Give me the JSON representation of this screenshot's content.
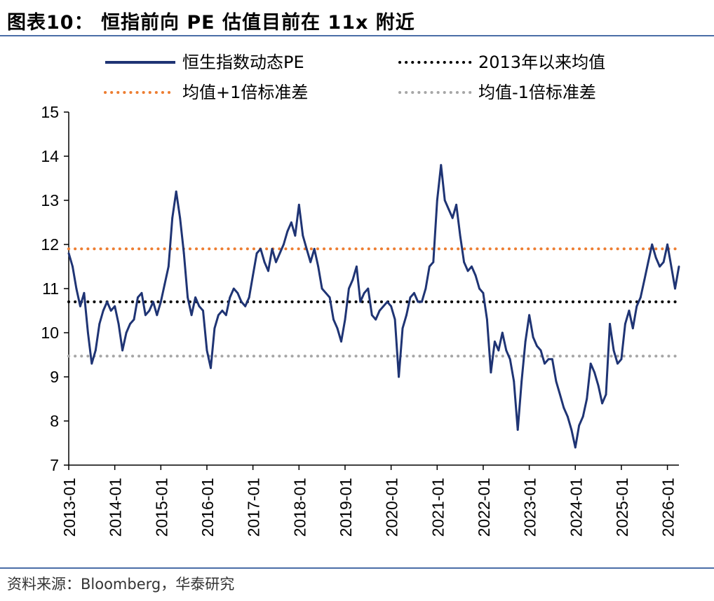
{
  "header": {
    "title": "图表10： 恒指前向 PE 估值目前在 11x 附近"
  },
  "footer": {
    "source": "资料来源：Bloomberg，华泰研究"
  },
  "colors": {
    "pe_line": "#1f3474",
    "mean": "#000000",
    "plus_sd": "#ed7d31",
    "minus_sd": "#a6a6a6",
    "rule": "#4a6da7"
  },
  "chart_data": {
    "type": "line",
    "title": "图表10： 恒指前向 PE 估值目前在 11x 附近",
    "xlabel": "",
    "ylabel": "",
    "ylim": [
      7,
      15
    ],
    "yticks": [
      7,
      8,
      9,
      10,
      11,
      12,
      13,
      14,
      15
    ],
    "xlim": [
      "2013-01",
      "2026-04"
    ],
    "xticks": [
      "2013-01",
      "2014-01",
      "2015-01",
      "2016-01",
      "2017-01",
      "2018-01",
      "2019-01",
      "2020-01",
      "2021-01",
      "2022-01",
      "2023-01",
      "2024-01",
      "2025-01",
      "2026-01"
    ],
    "grid": false,
    "legend_position": "top",
    "series": [
      {
        "name": "恒生指数动态PE",
        "style": "solid",
        "points": [
          [
            "2013-01",
            11.8
          ],
          [
            "2013-02",
            11.5
          ],
          [
            "2013-03",
            11.0
          ],
          [
            "2013-04",
            10.6
          ],
          [
            "2013-05",
            10.9
          ],
          [
            "2013-06",
            10.0
          ],
          [
            "2013-07",
            9.3
          ],
          [
            "2013-08",
            9.6
          ],
          [
            "2013-09",
            10.2
          ],
          [
            "2013-10",
            10.5
          ],
          [
            "2013-11",
            10.7
          ],
          [
            "2013-12",
            10.5
          ],
          [
            "2014-01",
            10.6
          ],
          [
            "2014-02",
            10.2
          ],
          [
            "2014-03",
            9.6
          ],
          [
            "2014-04",
            10.0
          ],
          [
            "2014-05",
            10.2
          ],
          [
            "2014-06",
            10.3
          ],
          [
            "2014-07",
            10.8
          ],
          [
            "2014-08",
            10.9
          ],
          [
            "2014-09",
            10.4
          ],
          [
            "2014-10",
            10.5
          ],
          [
            "2014-11",
            10.7
          ],
          [
            "2014-12",
            10.4
          ],
          [
            "2015-01",
            10.7
          ],
          [
            "2015-02",
            11.1
          ],
          [
            "2015-03",
            11.5
          ],
          [
            "2015-04",
            12.6
          ],
          [
            "2015-05",
            13.2
          ],
          [
            "2015-06",
            12.6
          ],
          [
            "2015-07",
            11.8
          ],
          [
            "2015-08",
            10.8
          ],
          [
            "2015-09",
            10.4
          ],
          [
            "2015-10",
            10.8
          ],
          [
            "2015-11",
            10.6
          ],
          [
            "2015-12",
            10.5
          ],
          [
            "2016-01",
            9.6
          ],
          [
            "2016-02",
            9.2
          ],
          [
            "2016-03",
            10.1
          ],
          [
            "2016-04",
            10.4
          ],
          [
            "2016-05",
            10.5
          ],
          [
            "2016-06",
            10.4
          ],
          [
            "2016-07",
            10.8
          ],
          [
            "2016-08",
            11.0
          ],
          [
            "2016-09",
            10.9
          ],
          [
            "2016-10",
            10.7
          ],
          [
            "2016-11",
            10.6
          ],
          [
            "2016-12",
            10.8
          ],
          [
            "2017-01",
            11.3
          ],
          [
            "2017-02",
            11.8
          ],
          [
            "2017-03",
            11.9
          ],
          [
            "2017-04",
            11.6
          ],
          [
            "2017-05",
            11.4
          ],
          [
            "2017-06",
            11.9
          ],
          [
            "2017-07",
            11.6
          ],
          [
            "2017-08",
            11.8
          ],
          [
            "2017-09",
            12.0
          ],
          [
            "2017-10",
            12.3
          ],
          [
            "2017-11",
            12.5
          ],
          [
            "2017-12",
            12.2
          ],
          [
            "2018-01",
            12.9
          ],
          [
            "2018-02",
            12.2
          ],
          [
            "2018-03",
            11.9
          ],
          [
            "2018-04",
            11.6
          ],
          [
            "2018-05",
            11.9
          ],
          [
            "2018-06",
            11.5
          ],
          [
            "2018-07",
            11.0
          ],
          [
            "2018-08",
            10.9
          ],
          [
            "2018-09",
            10.8
          ],
          [
            "2018-10",
            10.3
          ],
          [
            "2018-11",
            10.1
          ],
          [
            "2018-12",
            9.8
          ],
          [
            "2019-01",
            10.3
          ],
          [
            "2019-02",
            11.0
          ],
          [
            "2019-03",
            11.2
          ],
          [
            "2019-04",
            11.5
          ],
          [
            "2019-05",
            10.7
          ],
          [
            "2019-06",
            10.9
          ],
          [
            "2019-07",
            11.0
          ],
          [
            "2019-08",
            10.4
          ],
          [
            "2019-09",
            10.3
          ],
          [
            "2019-10",
            10.5
          ],
          [
            "2019-11",
            10.6
          ],
          [
            "2019-12",
            10.7
          ],
          [
            "2020-01",
            10.6
          ],
          [
            "2020-02",
            10.3
          ],
          [
            "2020-03",
            9.0
          ],
          [
            "2020-04",
            10.1
          ],
          [
            "2020-05",
            10.4
          ],
          [
            "2020-06",
            10.8
          ],
          [
            "2020-07",
            10.9
          ],
          [
            "2020-08",
            10.7
          ],
          [
            "2020-09",
            10.7
          ],
          [
            "2020-10",
            11.0
          ],
          [
            "2020-11",
            11.5
          ],
          [
            "2020-12",
            11.6
          ],
          [
            "2021-01",
            13.0
          ],
          [
            "2021-02",
            13.8
          ],
          [
            "2021-03",
            13.0
          ],
          [
            "2021-04",
            12.8
          ],
          [
            "2021-05",
            12.6
          ],
          [
            "2021-06",
            12.9
          ],
          [
            "2021-07",
            12.2
          ],
          [
            "2021-08",
            11.6
          ],
          [
            "2021-09",
            11.4
          ],
          [
            "2021-10",
            11.5
          ],
          [
            "2021-11",
            11.3
          ],
          [
            "2021-12",
            11.0
          ],
          [
            "2022-01",
            10.9
          ],
          [
            "2022-02",
            10.3
          ],
          [
            "2022-03",
            9.1
          ],
          [
            "2022-04",
            9.8
          ],
          [
            "2022-05",
            9.6
          ],
          [
            "2022-06",
            10.0
          ],
          [
            "2022-07",
            9.6
          ],
          [
            "2022-08",
            9.4
          ],
          [
            "2022-09",
            8.9
          ],
          [
            "2022-10",
            7.8
          ],
          [
            "2022-11",
            8.9
          ],
          [
            "2022-12",
            9.8
          ],
          [
            "2023-01",
            10.4
          ],
          [
            "2023-02",
            9.9
          ],
          [
            "2023-03",
            9.7
          ],
          [
            "2023-04",
            9.6
          ],
          [
            "2023-05",
            9.3
          ],
          [
            "2023-06",
            9.4
          ],
          [
            "2023-07",
            9.4
          ],
          [
            "2023-08",
            8.9
          ],
          [
            "2023-09",
            8.6
          ],
          [
            "2023-10",
            8.3
          ],
          [
            "2023-11",
            8.1
          ],
          [
            "2023-12",
            7.8
          ],
          [
            "2024-01",
            7.4
          ],
          [
            "2024-02",
            7.9
          ],
          [
            "2024-03",
            8.1
          ],
          [
            "2024-04",
            8.5
          ],
          [
            "2024-05",
            9.3
          ],
          [
            "2024-06",
            9.1
          ],
          [
            "2024-07",
            8.8
          ],
          [
            "2024-08",
            8.4
          ],
          [
            "2024-09",
            8.6
          ],
          [
            "2024-10",
            10.2
          ],
          [
            "2024-11",
            9.6
          ],
          [
            "2024-12",
            9.3
          ],
          [
            "2025-01",
            9.4
          ],
          [
            "2025-02",
            10.2
          ],
          [
            "2025-03",
            10.5
          ],
          [
            "2025-04",
            10.1
          ],
          [
            "2025-05",
            10.6
          ],
          [
            "2025-06",
            10.8
          ],
          [
            "2025-07",
            11.2
          ],
          [
            "2025-08",
            11.6
          ],
          [
            "2025-09",
            12.0
          ],
          [
            "2025-10",
            11.7
          ],
          [
            "2025-11",
            11.5
          ],
          [
            "2025-12",
            11.6
          ],
          [
            "2026-01",
            12.0
          ],
          [
            "2026-02",
            11.5
          ],
          [
            "2026-03",
            11.0
          ],
          [
            "2026-04",
            11.5
          ]
        ]
      },
      {
        "name": "2013年以来均值",
        "style": "dotted",
        "value": 10.7
      },
      {
        "name": "均值+1倍标准差",
        "style": "dotted",
        "value": 11.9
      },
      {
        "name": "均值-1倍标准差",
        "style": "dotted",
        "value": 9.47
      }
    ]
  }
}
